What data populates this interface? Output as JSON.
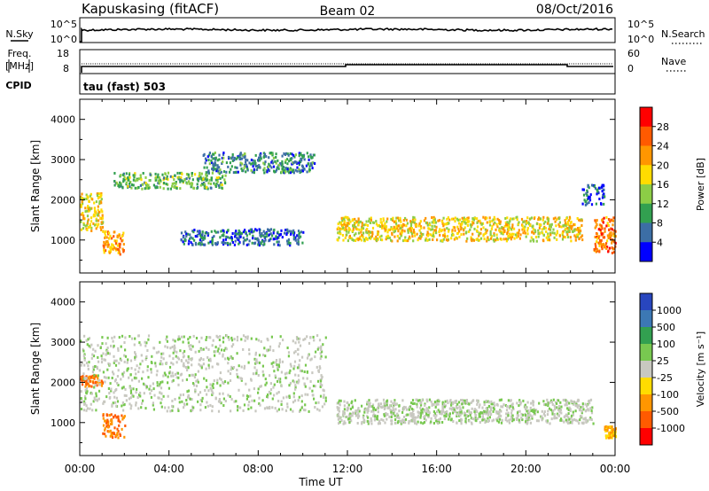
{
  "header": {
    "station": "Kapuskasing (fitACF)",
    "beam": "Beam 02",
    "date": "08/Oct/2016"
  },
  "noise_panel": {
    "left_label": "N.Sky",
    "right_label": "N.Search",
    "left_ticks": [
      "10^5",
      "10^0"
    ],
    "right_ticks": [
      "10^5",
      "10^0"
    ]
  },
  "freq_panel": {
    "left_label_1": "Freq.",
    "left_label_2": "[MHz]",
    "left_ticks": [
      "18",
      "8"
    ],
    "right_label": "Nave",
    "right_ticks": [
      "60",
      "0"
    ]
  },
  "cpid": {
    "label": "CPID",
    "value": "tau (fast) 503"
  },
  "power_colorbar": {
    "label": "Power [dB]",
    "ticks": [
      "28",
      "24",
      "20",
      "16",
      "12",
      "8",
      "4"
    ],
    "colors": [
      "#ff0000",
      "#ff5a00",
      "#ff9600",
      "#ffdc00",
      "#8ccd46",
      "#32a050",
      "#3c6ea5",
      "#0000ff"
    ]
  },
  "velocity_colorbar": {
    "label": "Velocity [m s⁻¹]",
    "ticks": [
      "1000",
      "500",
      "100",
      "25",
      "-25",
      "-100",
      "-500",
      "-1000"
    ],
    "colors": [
      "#2846be",
      "#3c78b4",
      "#32a050",
      "#78c850",
      "#c8c8c0",
      "#ffdc00",
      "#ff9600",
      "#ff5a00",
      "#ff0000"
    ]
  },
  "chart_data": [
    {
      "type": "heatmap",
      "title": "Power",
      "xlabel": "Time UT",
      "ylabel": "Slant Range [km]",
      "xlim": [
        "00:00",
        "24:00"
      ],
      "ylim": [
        180,
        4500
      ],
      "x_ticks": [
        "00:00",
        "04:00",
        "08:00",
        "12:00",
        "16:00",
        "20:00",
        "00:00"
      ],
      "y_ticks": [
        "1000",
        "2000",
        "3000",
        "4000"
      ],
      "regions": [
        {
          "time": [
            "00:00",
            "01:00"
          ],
          "range_km": [
            1250,
            2200
          ],
          "power_db": 20
        },
        {
          "time": [
            "01:00",
            "02:00"
          ],
          "range_km": [
            650,
            1250
          ],
          "power_db": 24
        },
        {
          "time": [
            "01:30",
            "06:30"
          ],
          "range_km": [
            2300,
            2700
          ],
          "power_db": 14
        },
        {
          "time": [
            "05:30",
            "10:30"
          ],
          "range_km": [
            2700,
            3200
          ],
          "power_db": 10
        },
        {
          "time": [
            "04:30",
            "10:00"
          ],
          "range_km": [
            900,
            1300
          ],
          "power_db": 8
        },
        {
          "time": [
            "11:30",
            "22:30"
          ],
          "range_km": [
            1000,
            1600
          ],
          "power_db": 20
        },
        {
          "time": [
            "22:30",
            "23:30"
          ],
          "range_km": [
            1900,
            2400
          ],
          "power_db": 8
        },
        {
          "time": [
            "23:00",
            "24:00"
          ],
          "range_km": [
            700,
            1600
          ],
          "power_db": 26
        }
      ]
    },
    {
      "type": "heatmap",
      "title": "Velocity",
      "xlabel": "Time UT",
      "ylabel": "Slant Range [km]",
      "xlim": [
        "00:00",
        "24:00"
      ],
      "ylim": [
        180,
        4500
      ],
      "x_ticks": [
        "00:00",
        "04:00",
        "08:00",
        "12:00",
        "16:00",
        "20:00",
        "00:00"
      ],
      "y_ticks": [
        "1000",
        "2000",
        "3000",
        "4000"
      ],
      "regions": [
        {
          "time": [
            "00:00",
            "01:00"
          ],
          "range_km": [
            1900,
            2200
          ],
          "velocity_ms": -500
        },
        {
          "time": [
            "01:00",
            "02:00"
          ],
          "range_km": [
            650,
            1250
          ],
          "velocity_ms": -500
        },
        {
          "time": [
            "00:00",
            "11:00"
          ],
          "range_km": [
            1300,
            3200
          ],
          "velocity_ms": 0
        },
        {
          "time": [
            "11:30",
            "23:00"
          ],
          "range_km": [
            1000,
            1600
          ],
          "velocity_ms": 0
        },
        {
          "time": [
            "23:30",
            "24:00"
          ],
          "range_km": [
            650,
            950
          ],
          "velocity_ms": -100
        }
      ]
    }
  ]
}
